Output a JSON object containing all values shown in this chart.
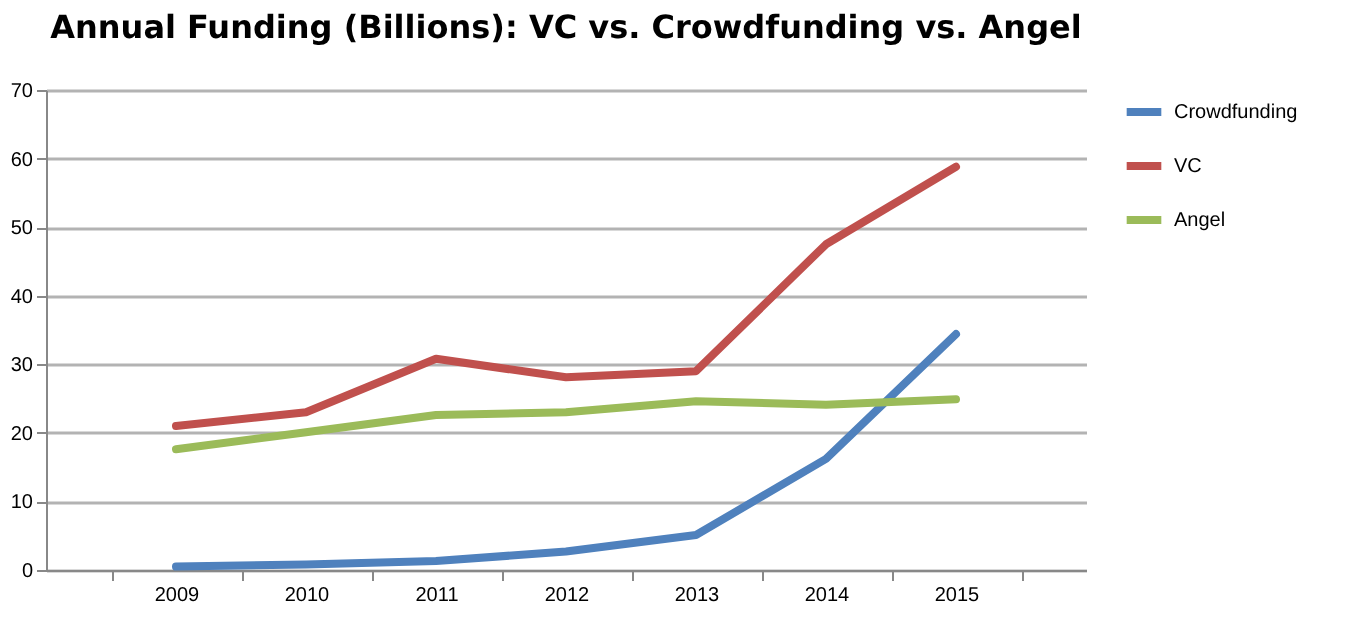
{
  "chart_data": {
    "type": "line",
    "title": "Annual Funding (Billions): VC vs. Crowdfunding vs. Angel",
    "categories": [
      "2009",
      "2010",
      "2011",
      "2012",
      "2013",
      "2014",
      "2015"
    ],
    "series": [
      {
        "name": "Crowdfunding",
        "color": "#4f81bd",
        "values": [
          0.5,
          0.8,
          1.3,
          2.7,
          5.1,
          16.2,
          34.4
        ]
      },
      {
        "name": "VC",
        "color": "#c0504d",
        "values": [
          21,
          23,
          30.8,
          28.1,
          29,
          47.5,
          58.8
        ]
      },
      {
        "name": "Angel",
        "color": "#9bbb59",
        "values": [
          17.6,
          20.1,
          22.6,
          23,
          24.6,
          24.1,
          24.9
        ]
      }
    ],
    "ylim": [
      0,
      70
    ],
    "yticks": [
      0,
      10,
      20,
      30,
      40,
      50,
      60,
      70
    ],
    "grid": "y",
    "legend": "right",
    "marker": "none",
    "line_style": "solid"
  }
}
